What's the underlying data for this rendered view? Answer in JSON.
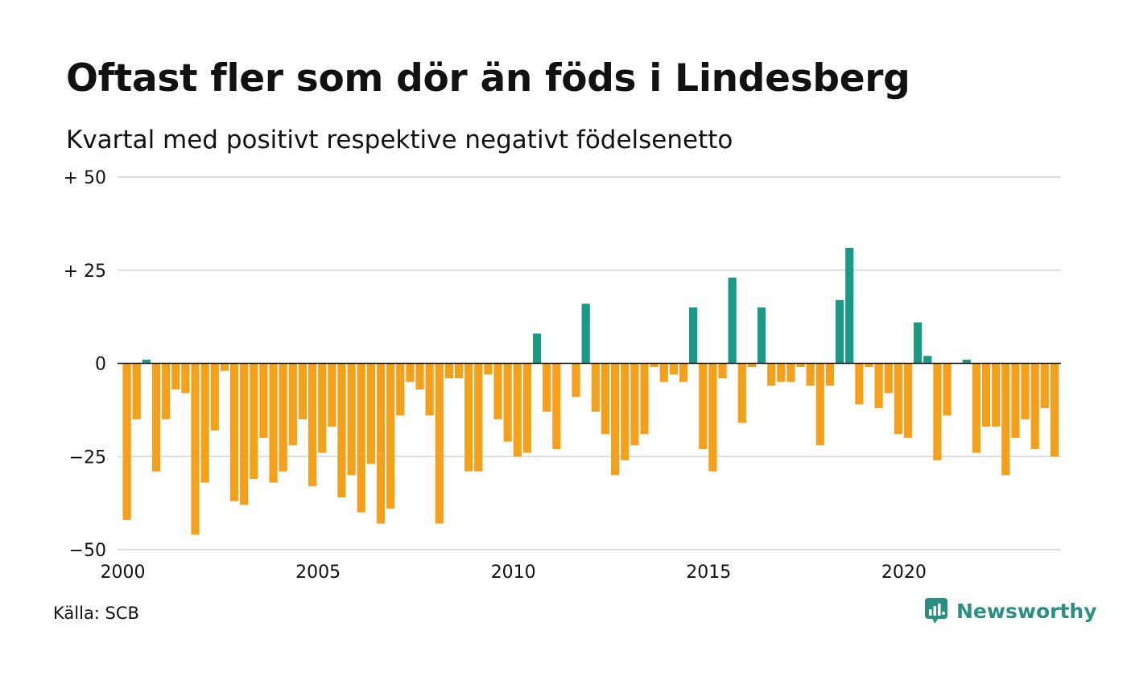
{
  "header": {
    "title": "Oftast fler som dör än föds i Lindesberg",
    "subtitle": "Kvartal med positivt respektive negativt födelsenetto"
  },
  "footer": {
    "source": "Källa: SCB",
    "brand_name": "Newsworthy",
    "brand_icon": "newsworthy-logo-icon"
  },
  "colors": {
    "positive": "#1a9985",
    "negative": "#f5a01a",
    "gridline": "#dddddd",
    "zeroline": "#111111"
  },
  "chart_data": {
    "type": "bar",
    "x_start": "2000 Q1",
    "x_step": "quarter",
    "xtick_labels": [
      "2000",
      "2005",
      "2010",
      "2015",
      "2020"
    ],
    "ytick_labels": [
      "+ 50",
      "+ 25",
      "0",
      "−25",
      "−50"
    ],
    "yticks": [
      50,
      25,
      0,
      -25,
      -50
    ],
    "ylim": [
      -50,
      50
    ],
    "grid": true,
    "values": [
      -42,
      -15,
      1,
      -29,
      -15,
      -7,
      -8,
      -46,
      -32,
      -18,
      -2,
      -37,
      -38,
      -31,
      -20,
      -32,
      -29,
      -22,
      -15,
      -33,
      -24,
      -17,
      -36,
      -30,
      -40,
      -27,
      -43,
      -39,
      -14,
      -5,
      -7,
      -14,
      -43,
      -4,
      -4,
      -29,
      -29,
      -3,
      -15,
      -21,
      -25,
      -24,
      8,
      -13,
      -23,
      0,
      -9,
      16,
      -13,
      -19,
      -30,
      -26,
      -22,
      -19,
      -1,
      -5,
      -3,
      -5,
      15,
      -23,
      -29,
      -4,
      23,
      -16,
      -1,
      15,
      -6,
      -5,
      -5,
      -1,
      -6,
      -22,
      -6,
      17,
      31,
      -11,
      -1,
      -12,
      -8,
      -19,
      -20,
      11,
      2,
      -26,
      -14,
      0,
      1,
      -24,
      -17,
      -17,
      -30,
      -20,
      -15,
      -23,
      -12,
      -25
    ]
  }
}
